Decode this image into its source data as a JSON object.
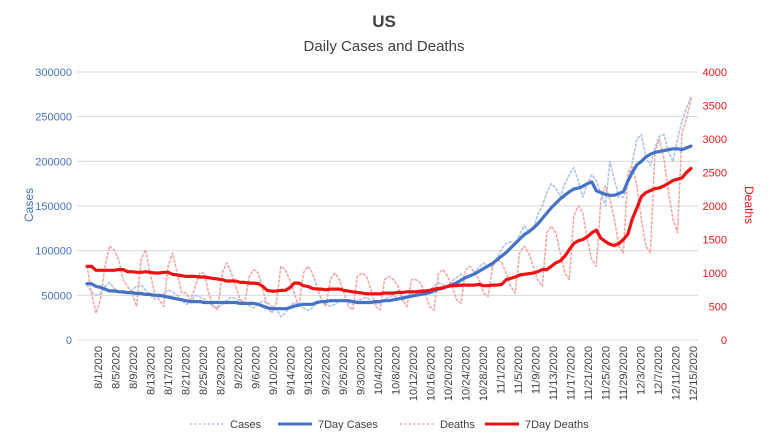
{
  "chart_data": {
    "type": "line",
    "title": "US",
    "subtitle": "Daily Cases and Deaths",
    "ylabel_left": "Cases",
    "ylabel_right": "Deaths",
    "ylim_left": [
      0,
      300000
    ],
    "ylim_right": [
      0,
      4000
    ],
    "y_ticks_left": [
      "0",
      "50000",
      "100000",
      "150000",
      "200000",
      "250000",
      "300000"
    ],
    "y_ticks_right": [
      "0",
      "500",
      "1000",
      "1500",
      "2000",
      "2500",
      "3000",
      "3500",
      "4000"
    ],
    "x_tick_labels": [
      "8/1/2020",
      "8/5/2020",
      "8/9/2020",
      "8/13/2020",
      "8/17/2020",
      "8/21/2020",
      "8/25/2020",
      "8/29/2020",
      "9/2/2020",
      "9/6/2020",
      "9/10/2020",
      "9/14/2020",
      "9/18/2020",
      "9/22/2020",
      "9/26/2020",
      "9/30/2020",
      "10/4/2020",
      "10/8/2020",
      "10/12/2020",
      "10/16/2020",
      "10/20/2020",
      "10/24/2020",
      "10/28/2020",
      "11/1/2020",
      "11/5/2020",
      "11/9/2020",
      "11/13/2020",
      "11/17/2020",
      "11/21/2020",
      "11/25/2020",
      "11/29/2020",
      "12/3/2020",
      "12/7/2020",
      "12/11/2020",
      "12/15/2020"
    ],
    "legend": [
      {
        "name": "Cases",
        "color": "#adc3e6",
        "style": "dotted"
      },
      {
        "name": "7Day Cases",
        "color": "#4472c4",
        "style": "solid"
      },
      {
        "name": "Deaths",
        "color": "#f4a6a6",
        "style": "dotted"
      },
      {
        "name": "7Day Deaths",
        "color": "#ee1111",
        "style": "solid"
      }
    ],
    "legend_position": "bottom",
    "colors": {
      "title": "#404040",
      "left_axis": "#4472c4",
      "right_axis": "#e8191c",
      "grid": "#d9d9d9"
    },
    "series": [
      {
        "name": "Cases",
        "axis": "left",
        "values": [
          62000,
          54000,
          50000,
          52000,
          60000,
          64000,
          58000,
          55000,
          52000,
          54000,
          56000,
          60000,
          62000,
          56000,
          50000,
          46000,
          48000,
          52000,
          56000,
          54000,
          50000,
          44000,
          40000,
          42000,
          50000,
          48000,
          46000,
          42000,
          38000,
          36000,
          40000,
          44000,
          48000,
          46000,
          44000,
          42000,
          38000,
          36000,
          40000,
          44000,
          42000,
          38000,
          35000,
          26000,
          30000,
          38000,
          42000,
          40000,
          36000,
          33000,
          36000,
          42000,
          44000,
          40000,
          38000,
          40000,
          44000,
          46000,
          42000,
          40000,
          44000,
          46000,
          48000,
          44000,
          40000,
          42000,
          46000,
          48000,
          50000,
          46000,
          44000,
          48000,
          52000,
          54000,
          50000,
          50000,
          56000,
          60000,
          64000,
          62000,
          60000,
          66000,
          70000,
          74000,
          70000,
          70000,
          76000,
          82000,
          86000,
          82000,
          82000,
          92000,
          102000,
          108000,
          110000,
          108000,
          118000,
          128000,
          122000,
          124000,
          140000,
          150000,
          165000,
          175000,
          170000,
          160000,
          175000,
          185000,
          193000,
          178000,
          160000,
          175000,
          185000,
          178000,
          165000,
          150000,
          200000,
          180000,
          160000,
          160000,
          175000,
          200000,
          225000,
          230000,
          205000,
          195000,
          215000,
          228000,
          230000,
          210000,
          200000,
          225000,
          245000,
          260000,
          272000
        ]
      },
      {
        "name": "7Day Cases",
        "axis": "left",
        "values": [
          63000,
          63000,
          60000,
          59000,
          57000,
          55000,
          55000,
          54000,
          54000,
          53000,
          53000,
          52000,
          52000,
          51000,
          51000,
          50000,
          50000,
          49000,
          48000,
          47000,
          46000,
          45000,
          44000,
          43000,
          43000,
          43000,
          42000,
          42000,
          42000,
          42000,
          42000,
          42000,
          42000,
          42000,
          41000,
          41000,
          41000,
          41000,
          40000,
          38000,
          36000,
          35000,
          35000,
          35000,
          35000,
          36000,
          38000,
          39000,
          40000,
          40000,
          40000,
          42000,
          43000,
          43000,
          44000,
          44000,
          44000,
          44000,
          44000,
          43000,
          42000,
          42000,
          42000,
          42000,
          43000,
          43000,
          44000,
          44000,
          45000,
          46000,
          47000,
          48000,
          49000,
          50000,
          51000,
          52000,
          53000,
          55000,
          57000,
          58000,
          60000,
          62000,
          64000,
          67000,
          70000,
          72000,
          74000,
          77000,
          80000,
          83000,
          86000,
          90000,
          94000,
          98000,
          103000,
          108000,
          113000,
          118000,
          121000,
          125000,
          130000,
          136000,
          142000,
          148000,
          153000,
          158000,
          162000,
          166000,
          169000,
          170000,
          172000,
          175000,
          177000,
          167000,
          165000,
          163000,
          162000,
          162000,
          164000,
          166000,
          178000,
          188000,
          196000,
          200000,
          205000,
          208000,
          210000,
          211000,
          212000,
          213000,
          214000,
          214000,
          213000,
          215000,
          217000
        ]
      },
      {
        "name": "Deaths",
        "axis": "right",
        "values": [
          1100,
          700,
          400,
          600,
          1100,
          1400,
          1350,
          1200,
          900,
          800,
          700,
          500,
          1200,
          1350,
          1000,
          700,
          600,
          500,
          1100,
          1300,
          1000,
          700,
          700,
          600,
          800,
          1000,
          1000,
          700,
          500,
          450,
          1000,
          1150,
          1000,
          800,
          600,
          550,
          950,
          1050,
          1000,
          750,
          500,
          400,
          550,
          1100,
          1050,
          900,
          700,
          500,
          1000,
          1100,
          1000,
          800,
          600,
          500,
          900,
          1000,
          900,
          700,
          500,
          450,
          950,
          1000,
          950,
          750,
          500,
          450,
          900,
          950,
          900,
          800,
          600,
          500,
          900,
          900,
          850,
          700,
          500,
          450,
          1000,
          1050,
          950,
          800,
          600,
          550,
          1050,
          1100,
          1000,
          900,
          700,
          650,
          1100,
          1200,
          1150,
          1000,
          800,
          700,
          1300,
          1400,
          1300,
          1100,
          900,
          800,
          1600,
          1700,
          1600,
          1300,
          1000,
          900,
          1850,
          2000,
          1900,
          1500,
          1200,
          1100,
          2100,
          2300,
          2100,
          1800,
          1400,
          1300,
          2500,
          2600,
          2300,
          1800,
          1400,
          1300,
          2800,
          3000,
          2700,
          2200,
          1800,
          1600,
          3100,
          3300,
          3600
        ]
      },
      {
        "name": "7Day Deaths",
        "axis": "right",
        "values": [
          1100,
          1100,
          1040,
          1040,
          1040,
          1040,
          1040,
          1050,
          1050,
          1020,
          1020,
          1010,
          1010,
          1020,
          1010,
          1000,
          1000,
          1010,
          1010,
          980,
          970,
          960,
          950,
          950,
          950,
          940,
          940,
          930,
          920,
          910,
          900,
          880,
          880,
          880,
          860,
          860,
          850,
          850,
          840,
          800,
          740,
          730,
          730,
          740,
          740,
          780,
          850,
          850,
          810,
          800,
          770,
          760,
          760,
          750,
          760,
          760,
          760,
          740,
          730,
          720,
          710,
          700,
          690,
          690,
          690,
          690,
          700,
          700,
          700,
          710,
          710,
          720,
          720,
          720,
          730,
          730,
          740,
          760,
          770,
          780,
          800,
          810,
          810,
          820,
          820,
          820,
          820,
          830,
          810,
          810,
          820,
          820,
          830,
          900,
          920,
          940,
          970,
          980,
          990,
          1000,
          1020,
          1050,
          1050,
          1100,
          1150,
          1180,
          1250,
          1350,
          1440,
          1480,
          1500,
          1540,
          1600,
          1640,
          1520,
          1470,
          1430,
          1410,
          1440,
          1500,
          1580,
          1810,
          1970,
          2140,
          2200,
          2230,
          2260,
          2270,
          2300,
          2340,
          2380,
          2400,
          2420,
          2500,
          2560
        ]
      }
    ]
  }
}
